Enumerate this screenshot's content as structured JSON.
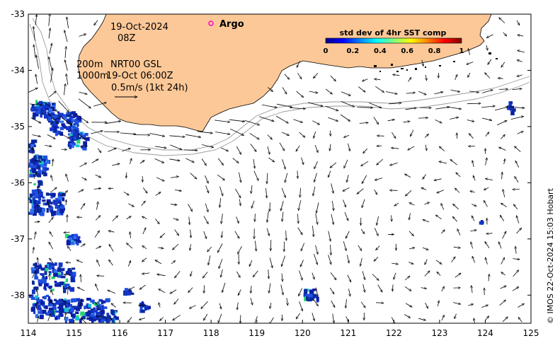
{
  "map": {
    "lon_range": [
      114,
      125
    ],
    "lat_range": [
      -38.5,
      -33
    ],
    "x_ticks": [
      114,
      115,
      116,
      117,
      118,
      119,
      120,
      121,
      122,
      123,
      124,
      125
    ],
    "y_ticks": [
      -33,
      -34,
      -35,
      -36,
      -37,
      -38
    ],
    "land_color": "#fcc897",
    "contour_color": "#9a9a9a",
    "coast_color": "#000000"
  },
  "annotations": {
    "date": "19-Oct-2024",
    "hour": "08Z",
    "depth_line1": "200m",
    "product": "NRT00 GSL",
    "depth_line2": "1000m",
    "product_time": "19-Oct 06:00Z",
    "scale_label": "0.5m/s (1kt 24h)"
  },
  "legend": {
    "argo_label": "Argo",
    "argo_color": "#ff00cc"
  },
  "colorbar": {
    "title": "std dev of 4hr SST comp",
    "ticks": [
      "0",
      "0.2",
      "0.4",
      "0.6",
      "0.8",
      "1"
    ]
  },
  "credit": "© IMOS 22-Oct-2024 15:03 Hobart"
}
